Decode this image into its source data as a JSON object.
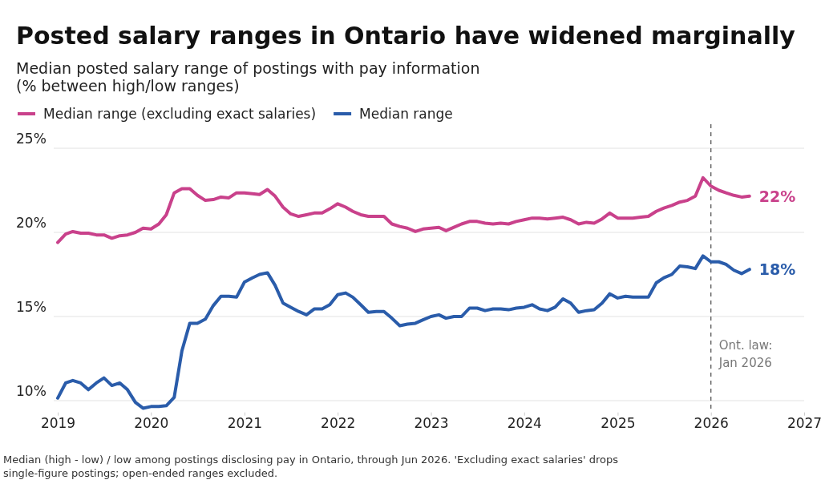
{
  "chart_data": {
    "type": "line",
    "title": "Posted salary ranges in Ontario have widened marginally",
    "subtitle": "Median posted salary range of postings with pay information\n(% between high/low ranges)",
    "x": [
      "2019-01",
      "2019-02",
      "2019-03",
      "2019-04",
      "2019-05",
      "2019-06",
      "2019-07",
      "2019-08",
      "2019-09",
      "2019-10",
      "2019-11",
      "2019-12",
      "2020-01",
      "2020-02",
      "2020-03",
      "2020-04",
      "2020-05",
      "2020-06",
      "2020-07",
      "2020-08",
      "2020-09",
      "2020-10",
      "2020-11",
      "2020-12",
      "2021-01",
      "2021-02",
      "2021-03",
      "2021-04",
      "2021-05",
      "2021-06",
      "2021-07",
      "2021-08",
      "2021-09",
      "2021-10",
      "2021-11",
      "2021-12",
      "2022-01",
      "2022-02",
      "2022-03",
      "2022-04",
      "2022-05",
      "2022-06",
      "2022-07",
      "2022-08",
      "2022-09",
      "2022-10",
      "2022-11",
      "2022-12",
      "2023-01",
      "2023-02",
      "2023-03",
      "2023-04",
      "2023-05",
      "2023-06",
      "2023-07",
      "2023-08",
      "2023-09",
      "2023-10",
      "2023-11",
      "2023-12",
      "2024-01",
      "2024-02",
      "2024-03",
      "2024-04",
      "2024-05",
      "2024-06",
      "2024-07",
      "2024-08",
      "2024-09",
      "2024-10",
      "2024-11",
      "2024-12",
      "2025-01",
      "2025-02",
      "2025-03",
      "2025-04",
      "2025-05",
      "2025-06",
      "2025-07",
      "2025-08",
      "2025-09",
      "2025-10",
      "2025-11",
      "2025-12",
      "2026-01",
      "2026-02",
      "2026-03",
      "2026-04",
      "2026-05",
      "2026-06"
    ],
    "series": [
      {
        "name": "Median range (excluding exact salaries)",
        "color": "#c9418b",
        "values": [
          19.4,
          19.9,
          20.05,
          19.95,
          19.95,
          19.85,
          19.85,
          19.65,
          19.8,
          19.85,
          20.0,
          20.25,
          20.2,
          20.5,
          21.05,
          22.35,
          22.6,
          22.6,
          22.2,
          21.9,
          21.95,
          22.1,
          22.05,
          22.35,
          22.35,
          22.3,
          22.25,
          22.55,
          22.15,
          21.5,
          21.1,
          20.95,
          21.05,
          21.15,
          21.15,
          21.4,
          21.7,
          21.5,
          21.25,
          21.05,
          20.95,
          20.95,
          20.95,
          20.5,
          20.35,
          20.25,
          20.05,
          20.2,
          20.25,
          20.3,
          20.1,
          20.3,
          20.5,
          20.65,
          20.65,
          20.55,
          20.5,
          20.55,
          20.5,
          20.65,
          20.75,
          20.85,
          20.85,
          20.8,
          20.85,
          20.9,
          20.75,
          20.5,
          20.6,
          20.55,
          20.8,
          21.15,
          20.85,
          20.85,
          20.85,
          20.9,
          20.95,
          21.25,
          21.45,
          21.6,
          21.8,
          21.9,
          22.15,
          23.25,
          22.75,
          22.5,
          22.35,
          22.2,
          22.1,
          22.15
        ]
      },
      {
        "name": "Median range",
        "color": "#2a5caa",
        "values": [
          10.15,
          11.05,
          11.2,
          11.05,
          10.65,
          11.05,
          11.35,
          10.9,
          11.05,
          10.65,
          9.9,
          9.55,
          9.65,
          9.65,
          9.7,
          10.2,
          12.95,
          14.6,
          14.6,
          14.85,
          15.65,
          16.2,
          16.2,
          16.15,
          17.05,
          17.3,
          17.5,
          17.6,
          16.85,
          15.8,
          15.55,
          15.3,
          15.1,
          15.45,
          15.45,
          15.7,
          16.3,
          16.4,
          16.15,
          15.7,
          15.25,
          15.3,
          15.3,
          14.9,
          14.45,
          14.55,
          14.6,
          14.8,
          15.0,
          15.1,
          14.9,
          15.0,
          15.0,
          15.5,
          15.5,
          15.35,
          15.45,
          15.45,
          15.4,
          15.5,
          15.55,
          15.7,
          15.45,
          15.35,
          15.55,
          16.05,
          15.8,
          15.25,
          15.35,
          15.4,
          15.8,
          16.35,
          16.1,
          16.2,
          16.15,
          16.15,
          16.15,
          17.0,
          17.3,
          17.5,
          18.0,
          17.95,
          17.85,
          18.6,
          18.25,
          18.25,
          18.1,
          17.75,
          17.55,
          17.8
        ]
      }
    ],
    "xlim": [
      "2019-01",
      "2027-01"
    ],
    "xticks": [
      {
        "value": "2019-01",
        "label": "2019"
      },
      {
        "value": "2020-01",
        "label": "2020"
      },
      {
        "value": "2021-01",
        "label": "2021"
      },
      {
        "value": "2022-01",
        "label": "2022"
      },
      {
        "value": "2023-01",
        "label": "2023"
      },
      {
        "value": "2024-01",
        "label": "2024"
      },
      {
        "value": "2025-01",
        "label": "2025"
      },
      {
        "value": "2026-01",
        "label": "2026"
      },
      {
        "value": "2027-01",
        "label": "2027"
      }
    ],
    "ylim": [
      9.3,
      25
    ],
    "yticks": [
      {
        "value": 10,
        "label": "10%"
      },
      {
        "value": 15,
        "label": "15%"
      },
      {
        "value": 20,
        "label": "20%"
      },
      {
        "value": 25,
        "label": "25%"
      }
    ],
    "grid": "y",
    "legend": "top left",
    "line_style": "solid",
    "marker": "none",
    "ref_lines": [
      {
        "axis": "x",
        "value": "2026-01",
        "label": "Ont. law:\nJan 2026",
        "color": "#555555",
        "line_style": "dashed"
      }
    ],
    "annotations": [
      {
        "text": "22%",
        "x": "2026-06",
        "y": 22.15
      },
      {
        "text": "18%",
        "x": "2026-06",
        "y": 17.8
      },
      "Median (high - low) / low among postings disclosing pay in Ontario, through Jun 2026. 'Excluding exact salaries' drops single-figure postings; open-ended ranges excluded."
    ]
  }
}
